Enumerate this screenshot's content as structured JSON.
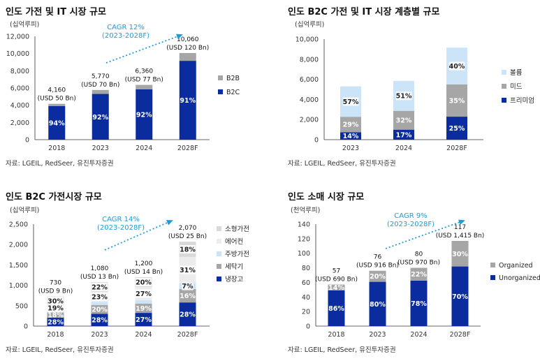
{
  "colors": {
    "navy": "#0a2c9e",
    "gray": "#a6a6a6",
    "lightgray": "#d9d9d9",
    "lightblue": "#cce4f7",
    "palegray": "#ececec",
    "cagr": "#1f9bd8",
    "axis": "#333333"
  },
  "chart_data": [
    {
      "type": "bar",
      "stacked": true,
      "title": "인도 가전 및 IT 시장 규모",
      "unit": "(십억루피)",
      "categories": [
        "2018",
        "2023",
        "2024",
        "2028F"
      ],
      "ylim": [
        0,
        12000
      ],
      "yticks": [
        0,
        2000,
        4000,
        6000,
        8000,
        10000,
        12000
      ],
      "ytick_labels": [
        "0",
        "2,000",
        "4,000",
        "6,000",
        "8,000",
        "10,000",
        "12,000"
      ],
      "totals": [
        4160,
        5770,
        6360,
        10060
      ],
      "total_labels": [
        "4,160",
        "5,770",
        "6,360",
        "10,060"
      ],
      "usd_labels": [
        "(USD 50 Bn)",
        "(USD 70 Bn)",
        "(USD 77 Bn)",
        "(USD 120 Bn)"
      ],
      "series": [
        {
          "name": "B2C",
          "color_key": "navy",
          "share": [
            0.94,
            0.92,
            0.92,
            0.91
          ],
          "labels": [
            "94%",
            "92%",
            "92%",
            "91%"
          ]
        },
        {
          "name": "B2B",
          "color_key": "gray",
          "share": [
            0.06,
            0.08,
            0.08,
            0.09
          ],
          "labels": [
            "",
            "",
            "",
            ""
          ]
        }
      ],
      "legend": [
        {
          "name": "B2B",
          "color_key": "gray"
        },
        {
          "name": "B2C",
          "color_key": "navy"
        }
      ],
      "cagr": {
        "line1": "CAGR 12%",
        "line2": "(2023-2028F)"
      },
      "source": "자료: LGEIL, RedSeer, 유진투자증권"
    },
    {
      "type": "bar",
      "stacked": true,
      "title": "인도 B2C 가전 및 IT 시장 계층별 규모",
      "unit": "(십억루피)",
      "categories": [
        "2023",
        "2024",
        "2028F"
      ],
      "ylim": [
        0,
        10000
      ],
      "yticks": [
        0,
        2000,
        4000,
        6000,
        8000,
        10000
      ],
      "ytick_labels": [
        "0",
        "2,000",
        "4,000",
        "6,000",
        "8,000",
        "10,000"
      ],
      "totals": [
        5300,
        5850,
        9150
      ],
      "series": [
        {
          "name": "프리미엄",
          "color_key": "navy",
          "share": [
            0.14,
            0.17,
            0.25
          ],
          "labels": [
            "14%",
            "17%",
            "25%"
          ]
        },
        {
          "name": "미드",
          "color_key": "gray",
          "share": [
            0.29,
            0.32,
            0.35
          ],
          "labels": [
            "29%",
            "32%",
            "35%"
          ]
        },
        {
          "name": "볼륨",
          "color_key": "lightblue",
          "share": [
            0.57,
            0.51,
            0.4
          ],
          "labels": [
            "57%",
            "51%",
            "40%"
          ]
        }
      ],
      "legend": [
        {
          "name": "볼륨",
          "color_key": "lightblue"
        },
        {
          "name": "미드",
          "color_key": "gray"
        },
        {
          "name": "프리미엄",
          "color_key": "navy"
        }
      ],
      "source": "자료: LGEIL, RedSeer, 유진투자증권"
    },
    {
      "type": "bar",
      "stacked": true,
      "title": "인도 B2C 가전시장 규모",
      "unit": "(십억루피)",
      "categories": [
        "2018",
        "2023",
        "2024",
        "2028F"
      ],
      "ylim": [
        0,
        2500
      ],
      "yticks": [
        0,
        500,
        1000,
        1500,
        2000,
        2500
      ],
      "ytick_labels": [
        "0",
        "500",
        "1,000",
        "1,500",
        "2,000",
        "2,500"
      ],
      "totals": [
        730,
        1080,
        1200,
        2070
      ],
      "total_labels": [
        "730",
        "1,080",
        "1,200",
        "2,070"
      ],
      "usd_labels": [
        "(USD 9 Bn)",
        "(USD 13 Bn)",
        "(USD 14 Bn)",
        "(USD 25 Bn)"
      ],
      "series": [
        {
          "name": "냉장고",
          "color_key": "navy",
          "share": [
            0.28,
            0.28,
            0.27,
            0.28
          ],
          "labels": [
            "28%",
            "28%",
            "27%",
            "28%"
          ]
        },
        {
          "name": "세탁기",
          "color_key": "gray",
          "share": [
            0.18,
            0.2,
            0.19,
            0.16
          ],
          "labels": [
            "18%",
            "20%",
            "19%",
            "16%"
          ]
        },
        {
          "name": "주방가전",
          "color_key": "lightblue",
          "share": [
            0.05,
            0.07,
            0.07,
            0.07
          ],
          "labels": [
            "",
            "",
            "",
            "7%"
          ]
        },
        {
          "name": "에어컨",
          "color_key": "palegray",
          "share": [
            0.19,
            0.23,
            0.27,
            0.31
          ],
          "labels": [
            "19%",
            "23%",
            "27%",
            "31%"
          ]
        },
        {
          "name": "소형가전",
          "color_key": "lightgray",
          "share": [
            0.3,
            0.22,
            0.2,
            0.18
          ],
          "labels": [
            "30%",
            "22%",
            "20%",
            "18%"
          ]
        }
      ],
      "legend": [
        {
          "name": "소형가전",
          "color_key": "lightgray"
        },
        {
          "name": "에어컨",
          "color_key": "palegray"
        },
        {
          "name": "주방가전",
          "color_key": "lightblue"
        },
        {
          "name": "세탁기",
          "color_key": "gray"
        },
        {
          "name": "냉장고",
          "color_key": "navy"
        }
      ],
      "cagr": {
        "line1": "CAGR 14%",
        "line2": "(2023-2028F)"
      },
      "source": "자료: LGEIL, RedSeer, 유진투자증권"
    },
    {
      "type": "bar",
      "stacked": true,
      "title": "인도 소매 시장 규모",
      "unit": "(천억루피)",
      "categories": [
        "2018",
        "2023",
        "2024",
        "2028F"
      ],
      "ylim": [
        0,
        140
      ],
      "yticks": [
        0,
        20,
        40,
        60,
        80,
        100,
        120,
        140
      ],
      "ytick_labels": [
        "0",
        "20",
        "40",
        "60",
        "80",
        "100",
        "120",
        "140"
      ],
      "totals": [
        57,
        76,
        80,
        117
      ],
      "total_labels": [
        "57",
        "76",
        "80",
        "117"
      ],
      "usd_labels": [
        "(USD 690 Bn)",
        "(USD 916 Bn)",
        "(USD 970 Bn)",
        "(USD 1,415 Bn)"
      ],
      "series": [
        {
          "name": "Unorganized",
          "color_key": "navy",
          "share": [
            0.86,
            0.8,
            0.78,
            0.7
          ],
          "labels": [
            "86%",
            "80%",
            "78%",
            "70%"
          ]
        },
        {
          "name": "Organized",
          "color_key": "gray",
          "share": [
            0.14,
            0.2,
            0.22,
            0.3
          ],
          "labels": [
            "14%",
            "20%",
            "22%",
            "30%"
          ]
        }
      ],
      "legend": [
        {
          "name": "Organized",
          "color_key": "gray"
        },
        {
          "name": "Unorganized",
          "color_key": "navy"
        }
      ],
      "cagr": {
        "line1": "CAGR 9%",
        "line2": "(2023-2028F)"
      },
      "source": "자료: LGEIL, RedSeer, 유진투자증권"
    }
  ]
}
